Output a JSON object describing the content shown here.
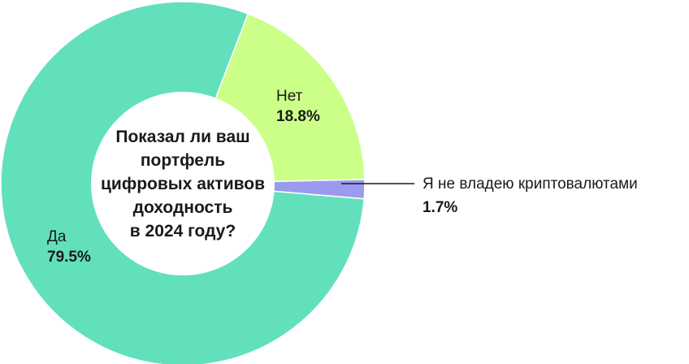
{
  "chart_data": {
    "type": "pie",
    "variant": "donut",
    "title_lines": [
      "Показал ли ваш",
      "портфель",
      "цифровых активов",
      "доходность",
      "в 2024 году?"
    ],
    "slices": [
      {
        "label": "Да",
        "value": 79.5,
        "value_text": "79.5%",
        "color": "#62e0bc"
      },
      {
        "label": "Нет",
        "value": 18.8,
        "value_text": "18.8%",
        "color": "#ccff88"
      },
      {
        "label": "Я не владею криптовалютами",
        "value": 1.7,
        "value_text": "1.7%",
        "color": "#9a9aee"
      }
    ]
  }
}
